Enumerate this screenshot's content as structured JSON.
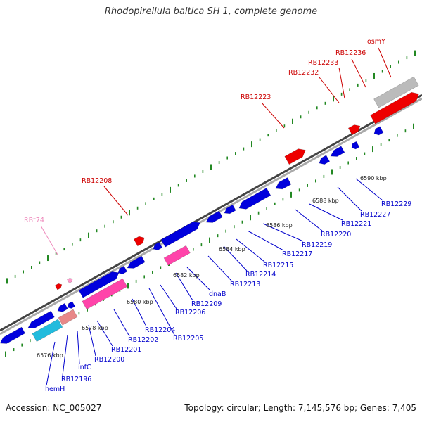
{
  "title": "Rhodopirellula baltica SH 1, complete genome",
  "accession": "Accession: NC_005027",
  "summary": "Topology: circular; Length: 7,145,576 bp; Genes: 7,405",
  "colors": {
    "forward_gene": "#ee0000",
    "reverse_gene": "#0000dd",
    "rna_gene": "#ff44aa",
    "pseudo_gene": "#bbbbbb",
    "cyan_gene": "#22bbdd",
    "salmon_gene": "#e88888",
    "tick": "#228822",
    "upper_label": "#cc0000",
    "lower_label": "#0000cc",
    "trna_label": "#ee88bb"
  },
  "kbp_marks": [
    "6576 kbp",
    "6578 kbp",
    "6580 kbp",
    "6582 kbp",
    "6584 kbp",
    "6586 kbp",
    "6588 kbp",
    "6590 kbp"
  ],
  "upper_labels": [
    {
      "text": "RBt74",
      "kind": "trna"
    },
    {
      "text": "RB12208",
      "kind": "gene"
    },
    {
      "text": "RB12223",
      "kind": "gene"
    },
    {
      "text": "RB12232",
      "kind": "gene"
    },
    {
      "text": "RB12233",
      "kind": "gene"
    },
    {
      "text": "RB12236",
      "kind": "gene"
    },
    {
      "text": "osmY",
      "kind": "gene"
    }
  ],
  "lower_labels": [
    "hemH",
    "RB12196",
    "infC",
    "RB12200",
    "RB12201",
    "RB12202",
    "RB12204",
    "RB12205",
    "RB12206",
    "RB12209",
    "dnaB",
    "RB12213",
    "RB12214",
    "RB12215",
    "RB12217",
    "RB12219",
    "RB12220",
    "RB12221",
    "RB12227",
    "RB12229"
  ]
}
